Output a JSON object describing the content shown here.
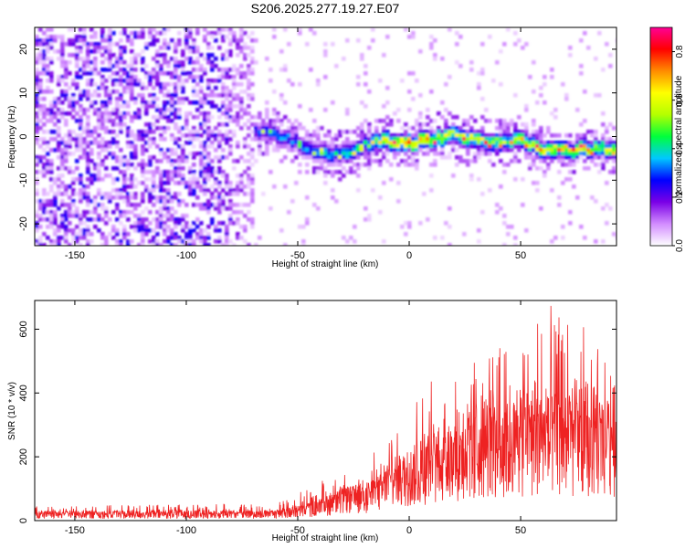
{
  "title": "S206.2025.277.19.27.E07",
  "chart_data": [
    {
      "type": "heatmap",
      "xlabel": "Height of straight line (km)",
      "ylabel": "Frequency (Hz)",
      "xlim": [
        -168,
        93
      ],
      "ylim": [
        -25,
        25
      ],
      "xticks": [
        -150,
        -100,
        -50,
        0,
        50
      ],
      "yticks": [
        -20,
        -10,
        0,
        10,
        20
      ],
      "colorbar": {
        "label": "Normalized spectral amplitude",
        "range": [
          0.0,
          0.9
        ],
        "ticks": [
          0.0,
          0.2,
          0.4,
          0.6,
          0.8
        ],
        "colors": [
          "#ffffff",
          "#d28cff",
          "#7a00e6",
          "#0000ff",
          "#00c8ff",
          "#00ff3c",
          "#b4ff00",
          "#ffff00",
          "#ff8c00",
          "#ff0000",
          "#ff0096"
        ]
      },
      "noise_region_km": [
        -168,
        -70
      ],
      "signal_track": {
        "height_km": [
          -70,
          -60,
          -50,
          -40,
          -30,
          -20,
          -10,
          0,
          10,
          20,
          30,
          40,
          50,
          60,
          70,
          80,
          90
        ],
        "frequency_hz": [
          1.5,
          0.5,
          -1.5,
          -3.5,
          -4.0,
          -2.0,
          -1.0,
          -1.5,
          -1.0,
          0.5,
          -1.0,
          -1.5,
          -1.0,
          -3.0,
          -3.0,
          -3.0,
          -3.0
        ],
        "amplitude": [
          0.3,
          0.35,
          0.35,
          0.4,
          0.45,
          0.5,
          0.7,
          0.75,
          0.65,
          0.6,
          0.6,
          0.55,
          0.6,
          0.65,
          0.6,
          0.65,
          0.6
        ]
      }
    },
    {
      "type": "line",
      "xlabel": "Height of straight line (km)",
      "ylabel": "SNR (10 * v/v)",
      "xlim": [
        -168,
        93
      ],
      "ylim": [
        0,
        690
      ],
      "xticks": [
        -150,
        -100,
        -50,
        0,
        50
      ],
      "yticks": [
        0,
        200,
        400,
        600
      ],
      "color": "#ee2222",
      "series": [
        {
          "name": "SNR",
          "envelope_x": [
            -168,
            -60,
            -50,
            -40,
            -30,
            -20,
            -15,
            -10,
            0,
            10,
            20,
            30,
            40,
            50,
            60,
            70,
            80,
            93
          ],
          "envelope_mean": [
            22,
            24,
            35,
            50,
            75,
            90,
            100,
            130,
            170,
            200,
            230,
            250,
            270,
            285,
            300,
            290,
            280,
            285
          ],
          "envelope_peak": [
            45,
            55,
            85,
            130,
            155,
            150,
            275,
            245,
            360,
            440,
            490,
            550,
            610,
            630,
            690,
            650,
            640,
            430
          ]
        }
      ]
    }
  ]
}
